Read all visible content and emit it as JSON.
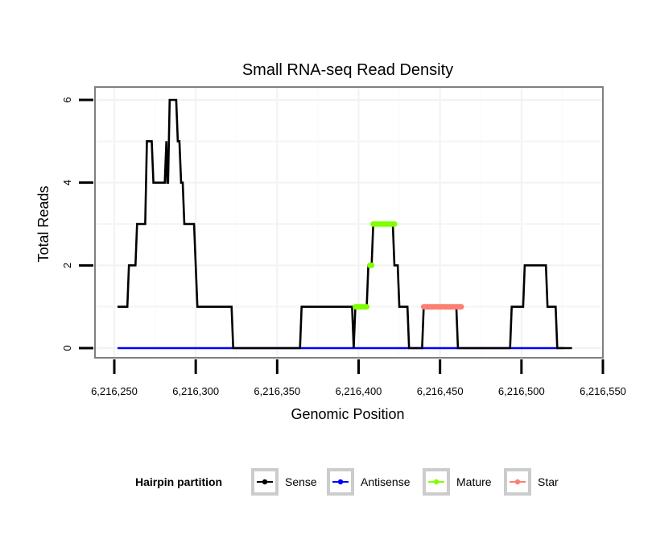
{
  "chart_data": {
    "type": "line",
    "title": "Small RNA-seq Read Density",
    "xlabel": "Genomic Position",
    "ylabel": "Total Reads",
    "xlim": [
      6216236,
      6216550
    ],
    "ylim": [
      -0.22,
      6.35
    ],
    "x_ticks": [
      6216250,
      6216300,
      6216350,
      6216400,
      6216450,
      6216500,
      6216550
    ],
    "x_tick_labels": [
      "6,216,250",
      "6,216,300",
      "6,216,350",
      "6,216,400",
      "6,216,450",
      "6,216,500",
      "6,216,550"
    ],
    "y_ticks": [
      0,
      2,
      4,
      6
    ],
    "y_tick_labels": [
      "0",
      "2",
      "4",
      "6"
    ],
    "grid": true,
    "legend": {
      "title": "Hairpin partition",
      "position": "bottom",
      "entries": [
        {
          "name": "Sense",
          "color": "#000000"
        },
        {
          "name": "Antisense",
          "color": "#0000ff"
        },
        {
          "name": "Mature",
          "color": "#7fff00"
        },
        {
          "name": "Star",
          "color": "#fa8072"
        }
      ]
    },
    "series": [
      {
        "name": "Sense",
        "color": "#000000",
        "points": [
          [
            6216252,
            1
          ],
          [
            6216258,
            1
          ],
          [
            6216259,
            2
          ],
          [
            6216263,
            2
          ],
          [
            6216264,
            3
          ],
          [
            6216269,
            3
          ],
          [
            6216270,
            5
          ],
          [
            6216273,
            5
          ],
          [
            6216274,
            4
          ],
          [
            6216281,
            4
          ],
          [
            6216282,
            5
          ],
          [
            6216282.5,
            4
          ],
          [
            6216283,
            4
          ],
          [
            6216284,
            6
          ],
          [
            6216288,
            6
          ],
          [
            6216289,
            5
          ],
          [
            6216290,
            5
          ],
          [
            6216291,
            4
          ],
          [
            6216292,
            4
          ],
          [
            6216293,
            3
          ],
          [
            6216299,
            3
          ],
          [
            6216301,
            1
          ],
          [
            6216322,
            1
          ],
          [
            6216323,
            0
          ],
          [
            6216364,
            0
          ],
          [
            6216365,
            1
          ],
          [
            6216396,
            1
          ],
          [
            6216397,
            0
          ],
          [
            6216398,
            1
          ],
          [
            6216405,
            1
          ],
          [
            6216406,
            2
          ],
          [
            6216408,
            2
          ],
          [
            6216409,
            3
          ],
          [
            6216421,
            3
          ],
          [
            6216422,
            2
          ],
          [
            6216424,
            2
          ],
          [
            6216425,
            1
          ],
          [
            6216430,
            1
          ],
          [
            6216431,
            0
          ],
          [
            6216439,
            0
          ],
          [
            6216440,
            1
          ],
          [
            6216460,
            1
          ],
          [
            6216461,
            0
          ],
          [
            6216493,
            0
          ],
          [
            6216494,
            1
          ],
          [
            6216501,
            1
          ],
          [
            6216502,
            2
          ],
          [
            6216515,
            2
          ],
          [
            6216516,
            1
          ],
          [
            6216521,
            1
          ],
          [
            6216522,
            0
          ],
          [
            6216531,
            0
          ]
        ]
      },
      {
        "name": "Antisense",
        "color": "#0000ff",
        "points": [
          [
            6216252,
            0
          ],
          [
            6216526,
            0
          ]
        ]
      },
      {
        "name": "Mature",
        "color": "#7fff00",
        "segments": [
          [
            [
              6216398,
              1
            ],
            [
              6216405,
              1
            ]
          ],
          [
            [
              6216407,
              2
            ],
            [
              6216408,
              2
            ]
          ],
          [
            [
              6216409,
              3
            ],
            [
              6216422,
              3
            ]
          ]
        ]
      },
      {
        "name": "Star",
        "color": "#fa8072",
        "segments": [
          [
            [
              6216440,
              1
            ],
            [
              6216463,
              1
            ]
          ]
        ]
      }
    ]
  }
}
